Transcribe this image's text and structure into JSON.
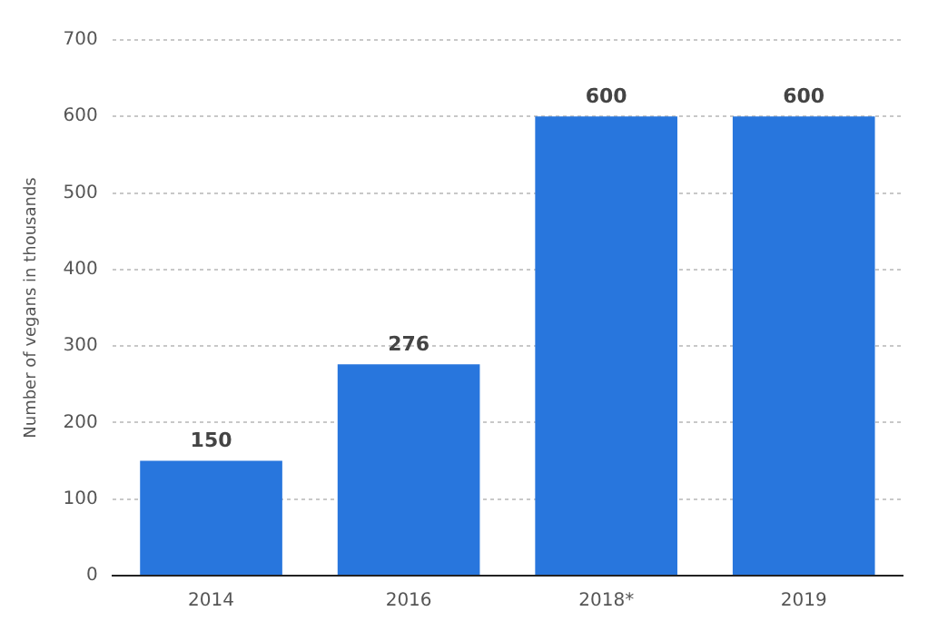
{
  "chart_data": {
    "type": "bar",
    "ylabel": "Number of vegans in thousands",
    "categories": [
      "2014",
      "2016",
      "2018*",
      "2019"
    ],
    "values": [
      150,
      276,
      600,
      600
    ],
    "color": "#2876dd",
    "ylim": [
      0,
      700
    ],
    "yticks": [
      0,
      100,
      200,
      300,
      400,
      500,
      600,
      700
    ],
    "grid": "y",
    "data_labels": true
  }
}
